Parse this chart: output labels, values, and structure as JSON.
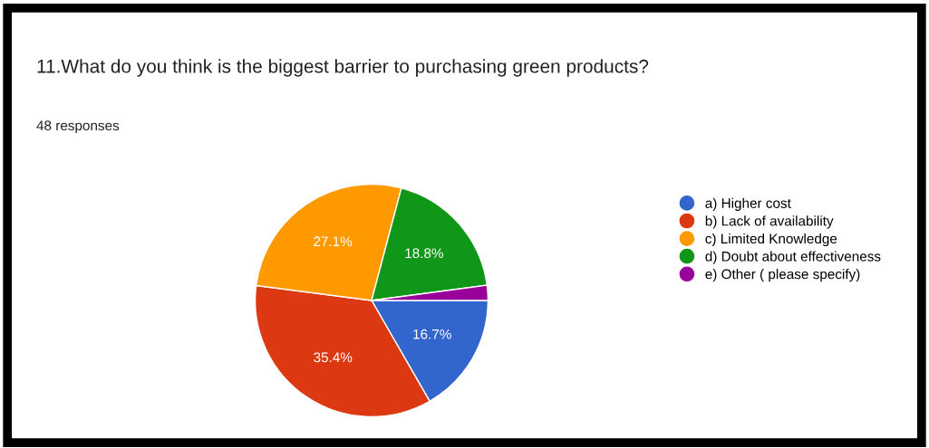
{
  "chart_data": {
    "type": "pie",
    "title": "11.What do you think is the biggest barrier to purchasing green products?",
    "subtitle": "48 responses",
    "categories": [
      "a) Higher cost",
      "b) Lack of availability",
      "c) Limited Knowledge",
      "d) Doubt about effectiveness",
      "e) Other ( please specify)"
    ],
    "values": [
      16.7,
      35.4,
      27.1,
      18.8,
      2.1
    ],
    "colors": [
      "#3366cc",
      "#dc3912",
      "#ff9900",
      "#109618",
      "#990099"
    ],
    "value_labels": [
      "16.7%",
      "35.4%",
      "27.1%",
      "18.8%",
      null
    ],
    "legend": "right"
  }
}
